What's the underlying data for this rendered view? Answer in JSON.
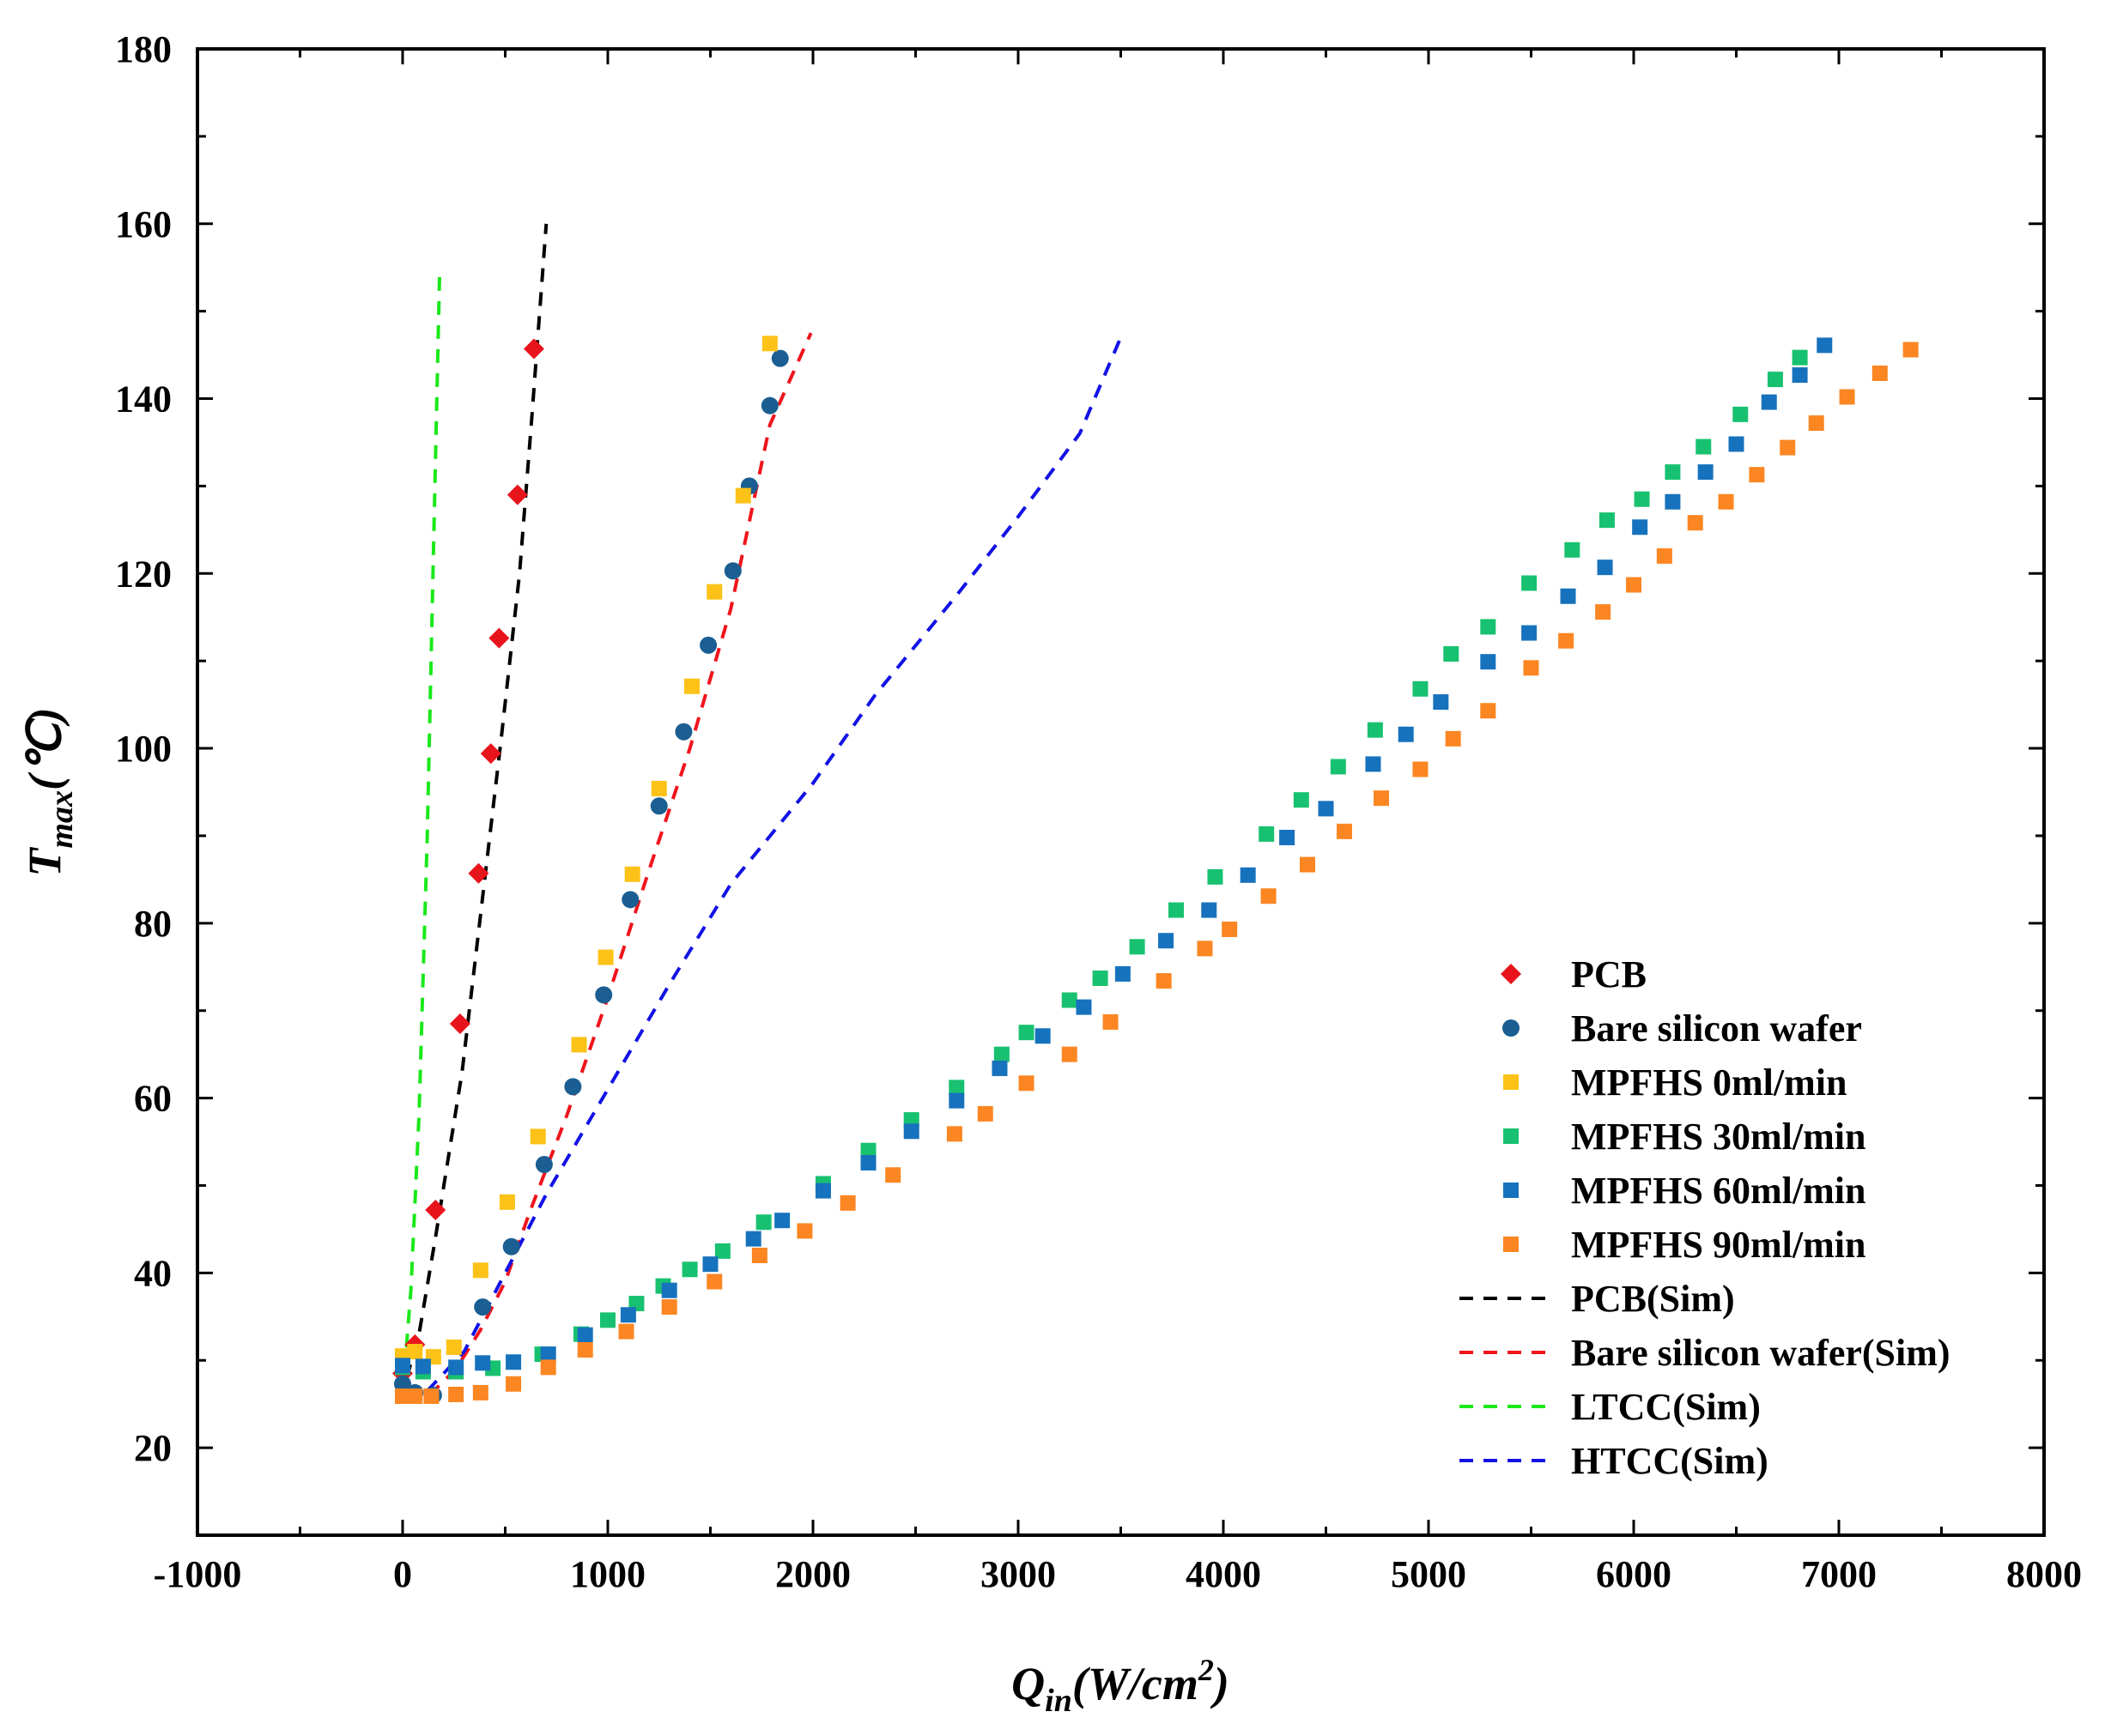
{
  "chart_data": {
    "type": "scatter",
    "title": "",
    "xlabel": {
      "base": "Q",
      "sub": "in",
      "unit": "(W/cm",
      "sup": "2",
      "close": ")"
    },
    "ylabel": {
      "base": "T",
      "sub": "max",
      "unit": "(℃)"
    },
    "xlim": [
      -1000,
      8000
    ],
    "ylim": [
      10,
      180
    ],
    "xticks": [
      -1000,
      0,
      1000,
      2000,
      3000,
      4000,
      5000,
      6000,
      7000,
      8000
    ],
    "yticks": [
      20,
      40,
      60,
      80,
      100,
      120,
      140,
      160,
      180
    ],
    "grid": false,
    "legend_position": "bottom-right",
    "series": [
      {
        "name": "PCB",
        "kind": "marker",
        "marker": "diamond",
        "color": "#e8141c",
        "points": [
          [
            0,
            28.5
          ],
          [
            60,
            31.8
          ],
          [
            160,
            47.2
          ],
          [
            280,
            68.5
          ],
          [
            370,
            85.7
          ],
          [
            430,
            99.4
          ],
          [
            470,
            112.6
          ],
          [
            560,
            129
          ],
          [
            640,
            145.7
          ]
        ]
      },
      {
        "name": "Bare silicon wafer",
        "kind": "marker",
        "marker": "circle",
        "color": "#1a5e92",
        "points": [
          [
            0,
            27.3
          ],
          [
            60,
            26.3
          ],
          [
            150,
            26
          ],
          [
            390,
            36.1
          ],
          [
            530,
            43
          ],
          [
            690,
            52.4
          ],
          [
            830,
            61.3
          ],
          [
            980,
            71.8
          ],
          [
            1110,
            82.7
          ],
          [
            1250,
            93.4
          ],
          [
            1370,
            101.9
          ],
          [
            1490,
            111.8
          ],
          [
            1610,
            120.3
          ],
          [
            1690,
            130
          ],
          [
            1790,
            139.2
          ],
          [
            1840,
            144.6
          ]
        ]
      },
      {
        "name": "MPFHS 0ml/min",
        "kind": "marker",
        "marker": "square",
        "color": "#fcc217",
        "points": [
          [
            0,
            30.5
          ],
          [
            60,
            31
          ],
          [
            150,
            30.4
          ],
          [
            250,
            31.5
          ],
          [
            380,
            40.3
          ],
          [
            510,
            48.1
          ],
          [
            660,
            55.6
          ],
          [
            860,
            66.1
          ],
          [
            990,
            76.1
          ],
          [
            1120,
            85.6
          ],
          [
            1250,
            95.4
          ],
          [
            1410,
            107.1
          ],
          [
            1520,
            117.9
          ],
          [
            1660,
            128.9
          ],
          [
            1790,
            146.3
          ]
        ]
      },
      {
        "name": "MPFHS 30ml/min",
        "kind": "marker",
        "marker": "square",
        "color": "#18c170",
        "points": [
          [
            0,
            29.2
          ],
          [
            100,
            28.7
          ],
          [
            260,
            28.7
          ],
          [
            440,
            29.1
          ],
          [
            680,
            30.7
          ],
          [
            870,
            33
          ],
          [
            1000,
            34.6
          ],
          [
            1140,
            36.5
          ],
          [
            1270,
            38.5
          ],
          [
            1400,
            40.4
          ],
          [
            1560,
            42.5
          ],
          [
            1760,
            45.8
          ],
          [
            2050,
            50.2
          ],
          [
            2270,
            54
          ],
          [
            2480,
            57.5
          ],
          [
            2700,
            61.2
          ],
          [
            2920,
            65
          ],
          [
            3040,
            67.5
          ],
          [
            3250,
            71.2
          ],
          [
            3400,
            73.7
          ],
          [
            3580,
            77.3
          ],
          [
            3770,
            81.5
          ],
          [
            3960,
            85.3
          ],
          [
            4210,
            90.2
          ],
          [
            4380,
            94.1
          ],
          [
            4560,
            97.9
          ],
          [
            4740,
            102.1
          ],
          [
            4960,
            106.8
          ],
          [
            5110,
            110.8
          ],
          [
            5290,
            113.9
          ],
          [
            5490,
            118.9
          ],
          [
            5700,
            122.7
          ],
          [
            5870,
            126.1
          ],
          [
            6040,
            128.5
          ],
          [
            6190,
            131.6
          ],
          [
            6340,
            134.5
          ],
          [
            6520,
            138.2
          ],
          [
            6690,
            142.2
          ],
          [
            6810,
            144.7
          ]
        ]
      },
      {
        "name": "MPFHS 60ml/min",
        "kind": "marker",
        "marker": "square",
        "color": "#1772bd",
        "points": [
          [
            0,
            29.4
          ],
          [
            100,
            29.3
          ],
          [
            260,
            29.2
          ],
          [
            390,
            29.7
          ],
          [
            540,
            29.8
          ],
          [
            710,
            30.7
          ],
          [
            890,
            32.9
          ],
          [
            1100,
            35.2
          ],
          [
            1300,
            38
          ],
          [
            1500,
            41
          ],
          [
            1710,
            43.9
          ],
          [
            1850,
            46
          ],
          [
            2050,
            49.4
          ],
          [
            2270,
            52.6
          ],
          [
            2480,
            56.2
          ],
          [
            2700,
            59.7
          ],
          [
            2910,
            63.4
          ],
          [
            3120,
            67.1
          ],
          [
            3320,
            70.4
          ],
          [
            3510,
            74.2
          ],
          [
            3720,
            78
          ],
          [
            3930,
            81.5
          ],
          [
            4120,
            85.5
          ],
          [
            4310,
            89.8
          ],
          [
            4500,
            93.1
          ],
          [
            4730,
            98.2
          ],
          [
            4890,
            101.6
          ],
          [
            5060,
            105.3
          ],
          [
            5290,
            109.9
          ],
          [
            5490,
            113.2
          ],
          [
            5680,
            117.4
          ],
          [
            5860,
            120.7
          ],
          [
            6030,
            125.3
          ],
          [
            6190,
            128.2
          ],
          [
            6350,
            131.6
          ],
          [
            6500,
            134.8
          ],
          [
            6660,
            139.6
          ],
          [
            6810,
            142.7
          ],
          [
            6930,
            146.1
          ]
        ]
      },
      {
        "name": "MPFHS 90ml/min",
        "kind": "marker",
        "marker": "square",
        "color": "#fb8622",
        "points": [
          [
            0,
            25.9
          ],
          [
            60,
            25.9
          ],
          [
            140,
            25.9
          ],
          [
            260,
            26.1
          ],
          [
            380,
            26.3
          ],
          [
            540,
            27.3
          ],
          [
            710,
            29.2
          ],
          [
            890,
            31.2
          ],
          [
            1090,
            33.3
          ],
          [
            1300,
            36.1
          ],
          [
            1520,
            39
          ],
          [
            1740,
            42
          ],
          [
            1960,
            44.8
          ],
          [
            2170,
            48
          ],
          [
            2390,
            51.2
          ],
          [
            2690,
            55.9
          ],
          [
            2840,
            58.2
          ],
          [
            3040,
            61.7
          ],
          [
            3250,
            65
          ],
          [
            3450,
            68.7
          ],
          [
            3710,
            73.4
          ],
          [
            3910,
            77.1
          ],
          [
            4030,
            79.3
          ],
          [
            4220,
            83.1
          ],
          [
            4410,
            86.7
          ],
          [
            4590,
            90.5
          ],
          [
            4770,
            94.3
          ],
          [
            4960,
            97.6
          ],
          [
            5120,
            101.1
          ],
          [
            5290,
            104.3
          ],
          [
            5500,
            109.2
          ],
          [
            5670,
            112.3
          ],
          [
            5850,
            115.6
          ],
          [
            6000,
            118.7
          ],
          [
            6150,
            122
          ],
          [
            6300,
            125.8
          ],
          [
            6450,
            128.2
          ],
          [
            6600,
            131.3
          ],
          [
            6750,
            134.4
          ],
          [
            6890,
            137.2
          ],
          [
            7040,
            140.2
          ],
          [
            7200,
            142.9
          ],
          [
            7350,
            145.6
          ]
        ]
      },
      {
        "name": "PCB(Sim)",
        "kind": "dashed-line",
        "color": "#000000",
        "points": [
          [
            20,
            28
          ],
          [
            80,
            33
          ],
          [
            160,
            44
          ],
          [
            290,
            63
          ],
          [
            400,
            85
          ],
          [
            480,
            101
          ],
          [
            570,
            120
          ],
          [
            630,
            138
          ],
          [
            700,
            160
          ]
        ]
      },
      {
        "name": "Bare silicon wafer(Sim)",
        "kind": "dashed-line",
        "color": "#f0141c",
        "points": [
          [
            130,
            26
          ],
          [
            260,
            29
          ],
          [
            380,
            33.5
          ],
          [
            500,
            39
          ],
          [
            620,
            47
          ],
          [
            800,
            58
          ],
          [
            1000,
            71.5
          ],
          [
            1200,
            86
          ],
          [
            1400,
            100
          ],
          [
            1600,
            116
          ],
          [
            1790,
            137
          ],
          [
            1990,
            147.5
          ]
        ]
      },
      {
        "name": "LTCC(Sim)",
        "kind": "dashed-line",
        "color": "#1ae81a",
        "points": [
          [
            0,
            26
          ],
          [
            40,
            38
          ],
          [
            80,
            58
          ],
          [
            120,
            90
          ],
          [
            150,
            122
          ],
          [
            180,
            154
          ]
        ]
      },
      {
        "name": "HTCC(Sim)",
        "kind": "dashed-line",
        "color": "#1212e6",
        "points": [
          [
            120,
            26.5
          ],
          [
            300,
            31
          ],
          [
            500,
            40
          ],
          [
            700,
            49
          ],
          [
            1000,
            61
          ],
          [
            1300,
            73
          ],
          [
            1600,
            84.5
          ],
          [
            2000,
            96
          ],
          [
            2300,
            106
          ],
          [
            2700,
            117.5
          ],
          [
            3000,
            126.5
          ],
          [
            3300,
            136
          ],
          [
            3500,
            147
          ]
        ]
      }
    ]
  }
}
